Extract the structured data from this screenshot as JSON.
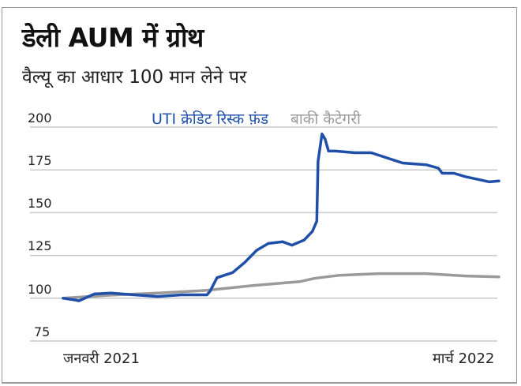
{
  "header": {
    "title": "डेली AUM में ग्रोथ",
    "subtitle": "वैल्यू का आधार 100 मान लेने पर"
  },
  "legend": {
    "series_1": "UTI क्रेडिट रिस्क फ़ंड",
    "series_2": "बाकी कैटेगरी"
  },
  "colors": {
    "series_1": "#1f4fa8",
    "series_2": "#9a9a9a",
    "grid": "#c8c8c8"
  },
  "axis": {
    "y_ticks": [
      "200",
      "175",
      "150",
      "125",
      "100",
      "75"
    ],
    "x_start": "जनवरी 2021",
    "x_end": "मार्च 2022"
  },
  "chart_data": {
    "type": "line",
    "title": "डेली AUM में ग्रोथ",
    "subtitle": "वैल्यू का आधार 100 मान लेने पर",
    "xlabel": "",
    "ylabel": "",
    "x_range": [
      "जनवरी 2021",
      "मार्च 2022"
    ],
    "ylim": [
      75,
      200
    ],
    "y_ticks": [
      75,
      100,
      125,
      150,
      175,
      200
    ],
    "grid": true,
    "legend_position": "top",
    "x": [
      0,
      0.027,
      0.036,
      0.072,
      0.109,
      0.163,
      0.217,
      0.272,
      0.33,
      0.337,
      0.353,
      0.389,
      0.417,
      0.444,
      0.471,
      0.504,
      0.525,
      0.553,
      0.572,
      0.582,
      0.585,
      0.594,
      0.601,
      0.609,
      0.625,
      0.67,
      0.707,
      0.743,
      0.779,
      0.833,
      0.861,
      0.87,
      0.897,
      0.924,
      0.96,
      0.978,
      1.0
    ],
    "series": [
      {
        "name": "UTI क्रेडिट रिस्क फ़ंड",
        "color": "#1f4fa8",
        "values": [
          100,
          99,
          98.5,
          102.5,
          103,
          102,
          101,
          102,
          102,
          104,
          112,
          115,
          121,
          128,
          132,
          133,
          131,
          134,
          139,
          145,
          180,
          196,
          193,
          186,
          186,
          185,
          185,
          182,
          179,
          178,
          176,
          173,
          173,
          171,
          169,
          168,
          168.5
        ]
      },
      {
        "name": "बाकी कैटेगरी",
        "color": "#9a9a9a",
        "x": [
          0,
          0.109,
          0.217,
          0.33,
          0.435,
          0.543,
          0.576,
          0.634,
          0.725,
          0.833,
          0.924,
          1.0
        ],
        "values": [
          100,
          101.8,
          103,
          104.6,
          107.4,
          109.7,
          111.6,
          113.4,
          114.4,
          114.4,
          113,
          112.5
        ]
      }
    ]
  }
}
